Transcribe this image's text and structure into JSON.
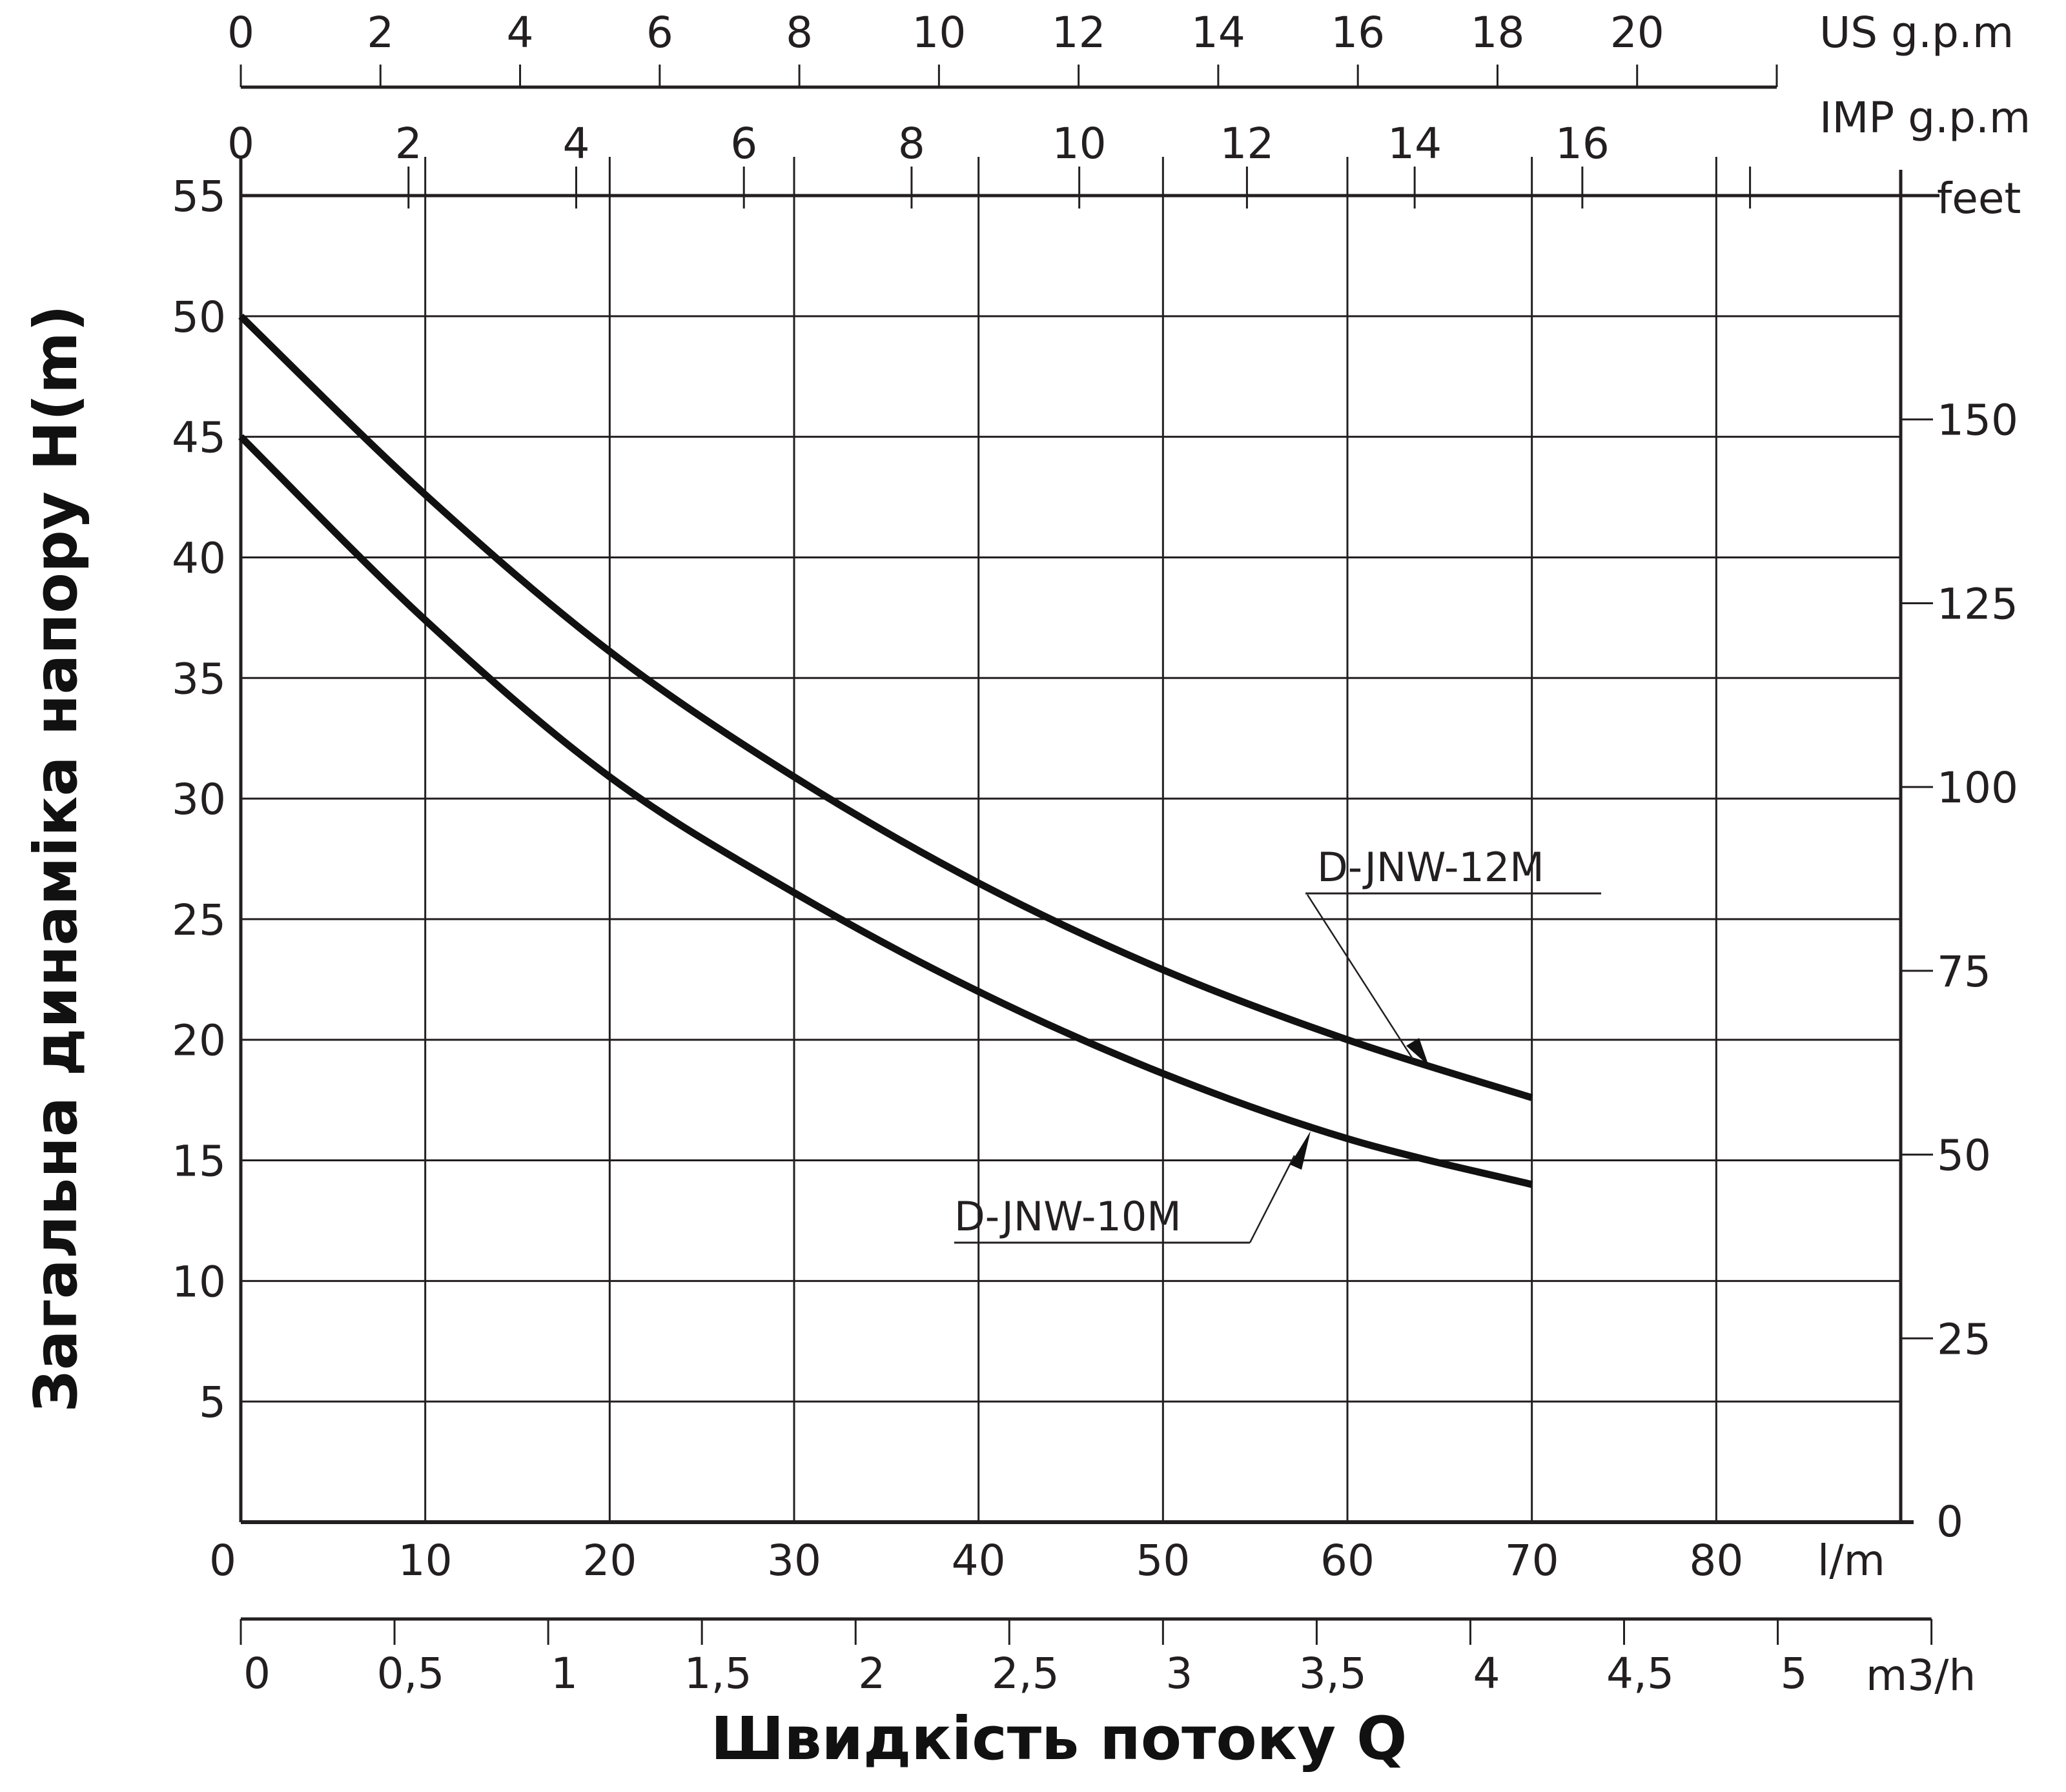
{
  "chart_data": {
    "type": "line",
    "title": "",
    "xlabel": "Швидкість потоку Q",
    "ylabel": "Загальна динаміка напору H(m)",
    "x_unit": "l/m",
    "y_unit": "m",
    "xlim": [
      0,
      90
    ],
    "ylim": [
      0,
      55
    ],
    "grid": true,
    "legend_position": "inline-annotations",
    "x": [
      0,
      10,
      20,
      30,
      40,
      50,
      60,
      70
    ],
    "series": [
      {
        "name": "D-JNW-12M",
        "values": [
          50,
          42.6,
          36.1,
          30.9,
          26.5,
          22.9,
          20.0,
          17.6
        ]
      },
      {
        "name": "D-JNW-10M",
        "values": [
          45,
          37.4,
          30.9,
          26.1,
          22.0,
          18.6,
          15.9,
          14.0
        ]
      }
    ],
    "axes": {
      "bottom_lm": {
        "unit": "l/m",
        "ticks": [
          "0",
          "10",
          "20",
          "30",
          "40",
          "50",
          "60",
          "70",
          "80"
        ]
      },
      "bottom_m3h": {
        "unit": "m3/h",
        "ticks": [
          "0",
          "0,5",
          "1",
          "1,5",
          "2",
          "2,5",
          "3",
          "3,5",
          "4",
          "4,5",
          "5"
        ]
      },
      "top_us_gpm": {
        "unit": "US g.p.m",
        "ticks": [
          "0",
          "2",
          "4",
          "6",
          "8",
          "10",
          "12",
          "14",
          "16",
          "18",
          "20"
        ]
      },
      "top_imp_gpm": {
        "unit": "IMP g.p.m",
        "ticks": [
          "0",
          "2",
          "4",
          "6",
          "8",
          "10",
          "12",
          "14",
          "16"
        ]
      },
      "left_m": {
        "unit": "H(m)",
        "ticks": [
          "5",
          "10",
          "15",
          "20",
          "25",
          "30",
          "35",
          "40",
          "45",
          "50",
          "55"
        ]
      },
      "right_feet": {
        "unit": "feet",
        "ticks": [
          "0",
          "25",
          "50",
          "75",
          "100",
          "125",
          "150"
        ]
      }
    }
  },
  "labels": {
    "x_title": "Швидкість потоку Q",
    "y_title": "Загальна динаміка напору H(m)",
    "unit_lm": "l/m",
    "unit_m3h": "m3/h",
    "unit_us": "US g.p.m",
    "unit_imp": "IMP g.p.m",
    "unit_feet": "feet",
    "series_12m": "D-JNW-12M",
    "series_10m": "D-JNW-10M"
  },
  "colors": {
    "line": "#111111",
    "grid": "#231f20",
    "background": "#ffffff"
  }
}
